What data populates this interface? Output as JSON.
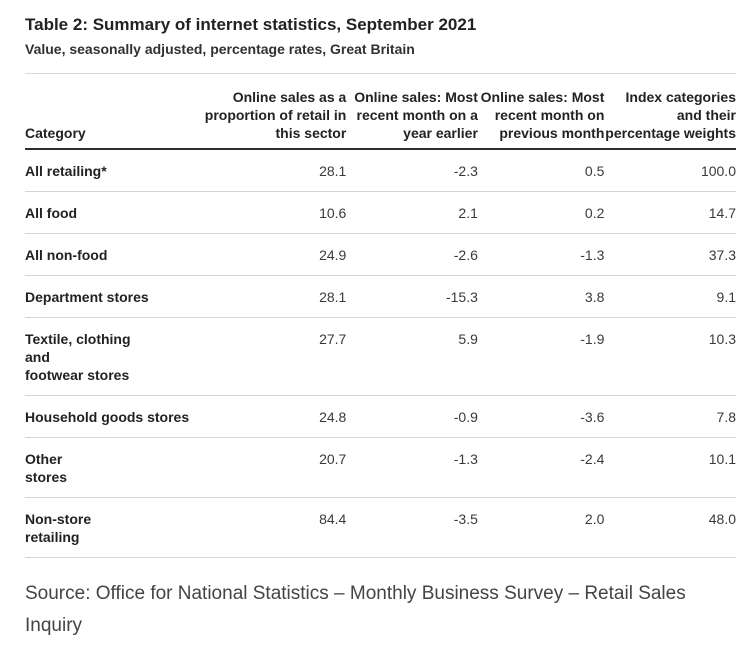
{
  "title": "Table 2: Summary of internet statistics, September 2021",
  "subtitle": "Value, seasonally adjusted, percentage rates, Great Britain",
  "table": {
    "headers": [
      "Category",
      "Online sales as a proportion of retail in this sector",
      "Online sales: Most recent month on a year earlier",
      "Online sales: Most recent month on previous month",
      "Index categories and their percentage weights"
    ],
    "rows": [
      {
        "category": "All retailing*",
        "values": [
          "28.1",
          "-2.3",
          "0.5",
          "100.0"
        ]
      },
      {
        "category": "All food",
        "values": [
          "10.6",
          "2.1",
          "0.2",
          "14.7"
        ]
      },
      {
        "category": "All non-food",
        "values": [
          "24.9",
          "-2.6",
          "-1.3",
          "37.3"
        ]
      },
      {
        "category": "Department stores",
        "values": [
          "28.1",
          "-15.3",
          "3.8",
          "9.1"
        ]
      },
      {
        "category": "Textile, clothing\nand\nfootwear stores",
        "values": [
          "27.7",
          "5.9",
          "-1.9",
          "10.3"
        ]
      },
      {
        "category": "Household goods stores",
        "values": [
          "24.8",
          "-0.9",
          "-3.6",
          "7.8"
        ]
      },
      {
        "category": "Other\nstores",
        "values": [
          "20.7",
          "-1.3",
          "-2.4",
          "10.1"
        ]
      },
      {
        "category": "Non-store\nretailing",
        "values": [
          "84.4",
          "-3.5",
          "2.0",
          "48.0"
        ]
      }
    ]
  },
  "source": "Source: Office for National Statistics – Monthly Business Survey – Retail Sales Inquiry"
}
